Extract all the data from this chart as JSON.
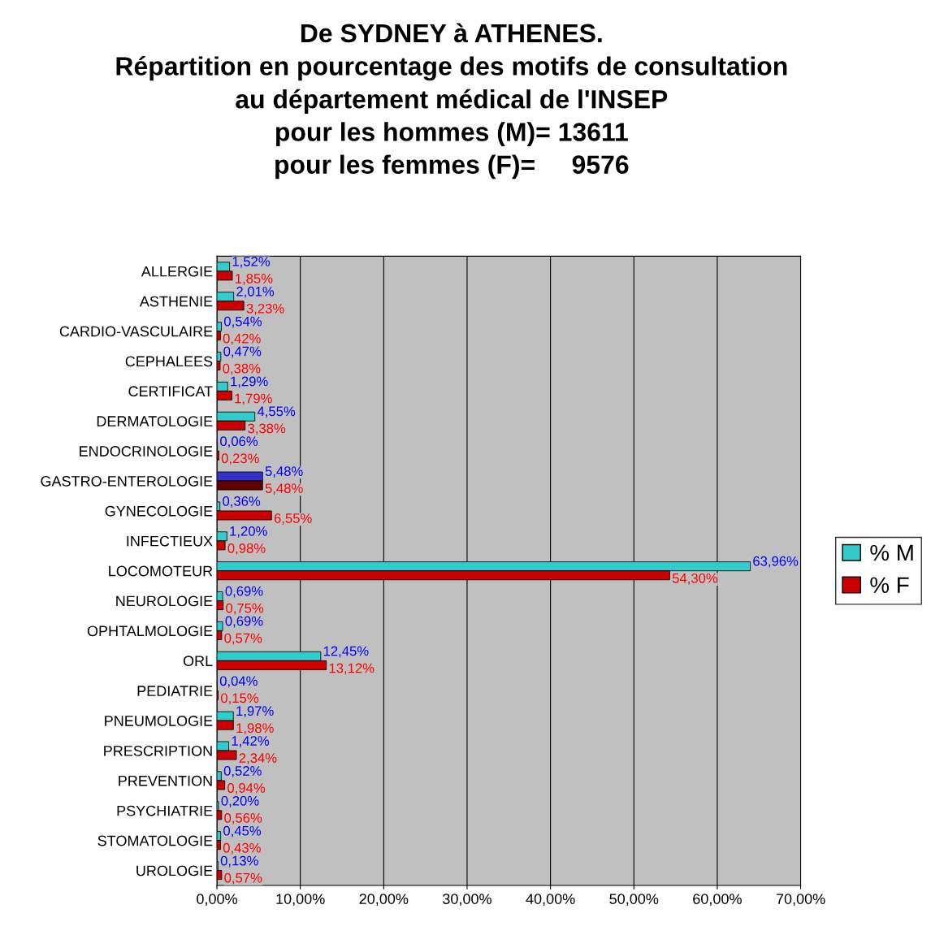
{
  "chart_data": {
    "type": "bar",
    "orientation": "horizontal",
    "title": "De SYDNEY à ATHENES.\nRépartition en pourcentage des motifs de consultation\nau département médical de l'INSEP\npour les hommes (M)= 13611\npour les femmes (F)=     9576",
    "categories": [
      "ALLERGIE",
      "ASTHENIE",
      "CARDIO-VASCULAIRE",
      "CEPHALEES",
      "CERTIFICAT",
      "DERMATOLOGIE",
      "ENDOCRINOLOGIE",
      "GASTRO-ENTEROLOGIE",
      "GYNECOLOGIE",
      "INFECTIEUX",
      "LOCOMOTEUR",
      "NEUROLOGIE",
      "OPHTALMOLOGIE",
      "ORL",
      "PEDIATRIE",
      "PNEUMOLOGIE",
      "PRESCRIPTION",
      "PREVENTION",
      "PSYCHIATRIE",
      "STOMATOLOGIE",
      "UROLOGIE"
    ],
    "series": [
      {
        "name": "% M",
        "color": "#33cccc",
        "colors": [
          "#33cccc",
          "#33cccc",
          "#33cccc",
          "#33cccc",
          "#33cccc",
          "#33cccc",
          "#33cccc",
          "#3333cc",
          "#33cccc",
          "#33cccc",
          "#33cccc",
          "#33cccc",
          "#33cccc",
          "#33cccc",
          "#33cccc",
          "#33cccc",
          "#33cccc",
          "#33cccc",
          "#33cccc",
          "#33cccc",
          "#33cccc"
        ],
        "values": [
          1.52,
          2.01,
          0.54,
          0.47,
          1.29,
          4.55,
          0.06,
          5.48,
          0.36,
          1.2,
          63.96,
          0.69,
          0.69,
          12.45,
          0.04,
          1.97,
          1.42,
          0.52,
          0.2,
          0.45,
          0.13
        ],
        "value_labels": [
          "1,52%",
          "2,01%",
          "0,54%",
          "0,47%",
          "1,29%",
          "4,55%",
          "0,06%",
          "5,48%",
          "0,36%",
          "1,20%",
          "63,96%",
          "0,69%",
          "0,69%",
          "12,45%",
          "0,04%",
          "1,97%",
          "1,42%",
          "0,52%",
          "0,20%",
          "0,45%",
          "0,13%"
        ]
      },
      {
        "name": "% F",
        "color": "#cc0000",
        "colors": [
          "#cc0000",
          "#cc0000",
          "#cc0000",
          "#cc0000",
          "#cc0000",
          "#cc0000",
          "#cc0000",
          "#660000",
          "#cc0000",
          "#cc0000",
          "#cc0000",
          "#cc0000",
          "#cc0000",
          "#cc0000",
          "#cc0000",
          "#cc0000",
          "#cc0000",
          "#cc0000",
          "#cc0000",
          "#cc0000",
          "#cc0000"
        ],
        "values": [
          1.85,
          3.23,
          0.42,
          0.38,
          1.79,
          3.38,
          0.23,
          5.48,
          6.55,
          0.98,
          54.3,
          0.75,
          0.57,
          13.12,
          0.15,
          1.98,
          2.34,
          0.94,
          0.56,
          0.43,
          0.57
        ],
        "value_labels": [
          "1,85%",
          "3,23%",
          "0,42%",
          "0,38%",
          "1,79%",
          "3,38%",
          "0,23%",
          "5,48%",
          "6,55%",
          "0,98%",
          "54,30%",
          "0,75%",
          "0,57%",
          "13,12%",
          "0,15%",
          "1,98%",
          "2,34%",
          "0,94%",
          "0,56%",
          "0,43%",
          "0,57%"
        ]
      }
    ],
    "xlim": [
      0,
      70
    ],
    "xticks": [
      {
        "value": 0,
        "label": "0,00%"
      },
      {
        "value": 10,
        "label": "10,00%"
      },
      {
        "value": 20,
        "label": "20,00%"
      },
      {
        "value": 30,
        "label": "30,00%"
      },
      {
        "value": 40,
        "label": "40,00%"
      },
      {
        "value": 50,
        "label": "50,00%"
      },
      {
        "value": 60,
        "label": "60,00%"
      },
      {
        "value": 70,
        "label": "70,00%"
      }
    ],
    "grid": "x",
    "legend": "right"
  }
}
